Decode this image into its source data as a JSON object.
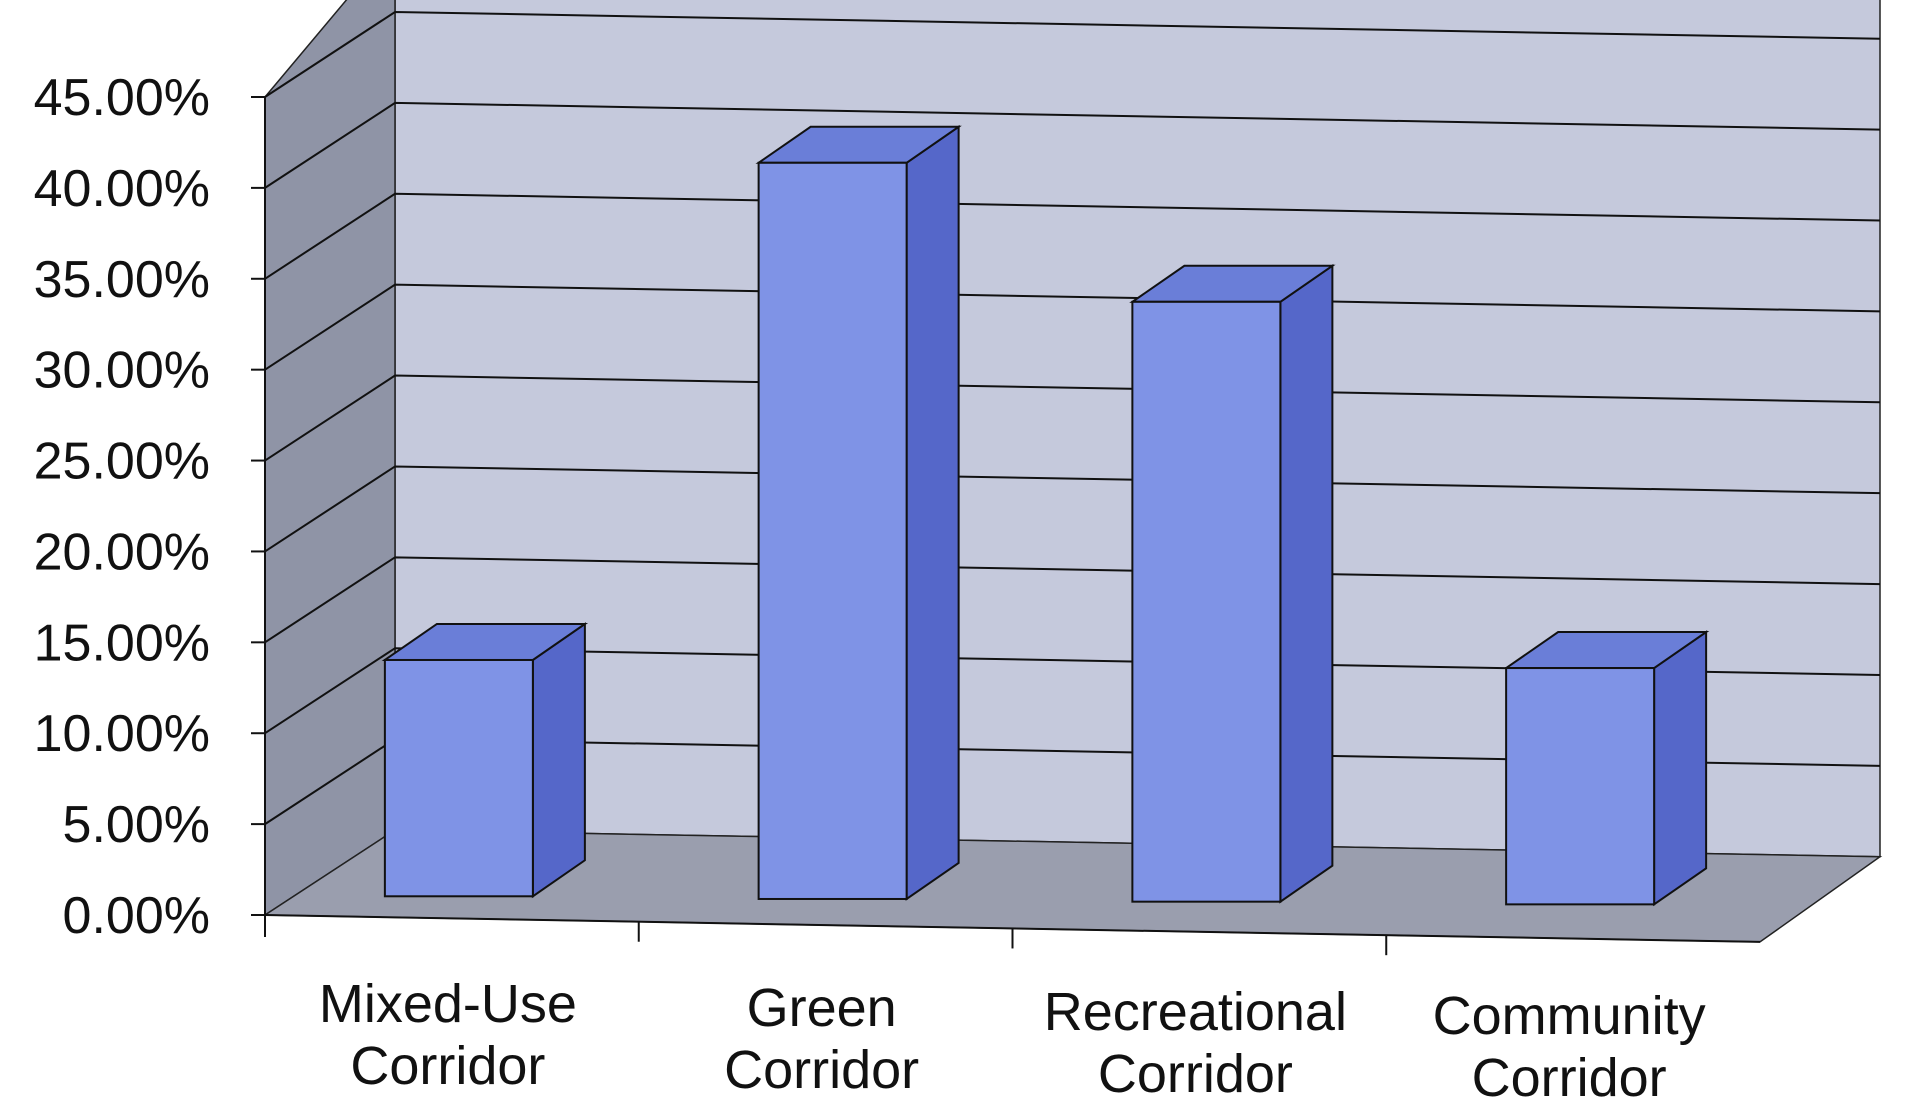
{
  "chart_data": {
    "type": "bar",
    "style": "3d-column",
    "title": "",
    "xlabel": "",
    "ylabel": "",
    "categories": [
      [
        "Mixed-Use",
        "Corridor"
      ],
      [
        "Green",
        "Corridor"
      ],
      [
        "Recreational",
        "Corridor"
      ],
      [
        "Community",
        "Corridor"
      ]
    ],
    "values": [
      13.0,
      40.5,
      33.0,
      13.0
    ],
    "ylim": [
      0,
      45
    ],
    "yticks": [
      "0.00%",
      "5.00%",
      "10.00%",
      "15.00%",
      "20.00%",
      "25.00%",
      "30.00%",
      "35.00%",
      "40.00%",
      "45.00%"
    ],
    "grid": true,
    "legend": "none",
    "colors": {
      "bar_front": "#7f93e6",
      "bar_side": "#5567c9",
      "bar_top": "#6a7ed8",
      "back_wall": "#c5c9dc",
      "side_wall": "#8f94a6",
      "floor": "#9a9eae"
    }
  }
}
